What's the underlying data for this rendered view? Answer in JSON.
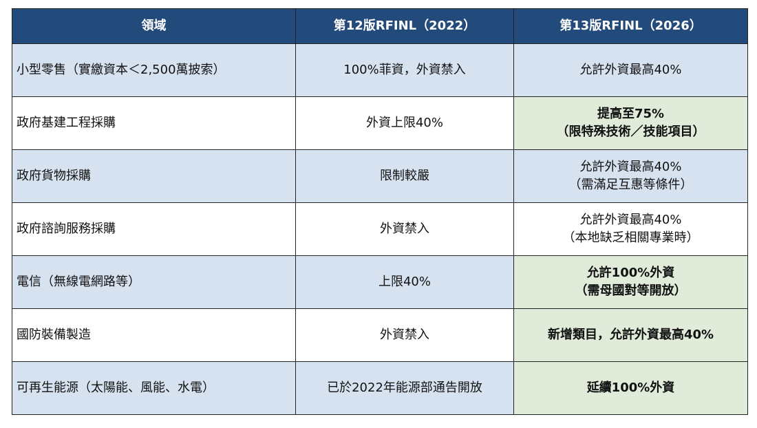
{
  "table": {
    "headers": [
      "領域",
      "第12版RFINL（2022）",
      "第13版RFINL（2026）"
    ],
    "rows": [
      {
        "area": "小型零售（實繳資本＜2,500萬披索）",
        "old": "100%菲資，外資禁入",
        "new": [
          "允許外資最高40%"
        ],
        "highlight": false
      },
      {
        "area": "政府基建工程採購",
        "old": "外資上限40%",
        "new": [
          "提高至75%",
          "（限特殊技術／技能項目）"
        ],
        "highlight": true
      },
      {
        "area": "政府貨物採購",
        "old": "限制較嚴",
        "new": [
          "允許外資最高40%",
          "（需滿足互惠等條件）"
        ],
        "highlight": false
      },
      {
        "area": "政府諮詢服務採購",
        "old": "外資禁入",
        "new": [
          "允許外資最高40%",
          "（本地缺乏相關專業時）"
        ],
        "highlight": false
      },
      {
        "area": "電信（無線電網路等）",
        "old": "上限40%",
        "new": [
          "允許100%外資",
          "（需母國對等開放）"
        ],
        "highlight": true
      },
      {
        "area": "國防裝備製造",
        "old": "外資禁入",
        "new": [
          "新增類目，允許外資最高40%"
        ],
        "highlight": true
      },
      {
        "area": "可再生能源（太陽能、風能、水電）",
        "old": "已於2022年能源部通告開放",
        "new": [
          "延續100%外資"
        ],
        "highlight": true
      }
    ]
  }
}
